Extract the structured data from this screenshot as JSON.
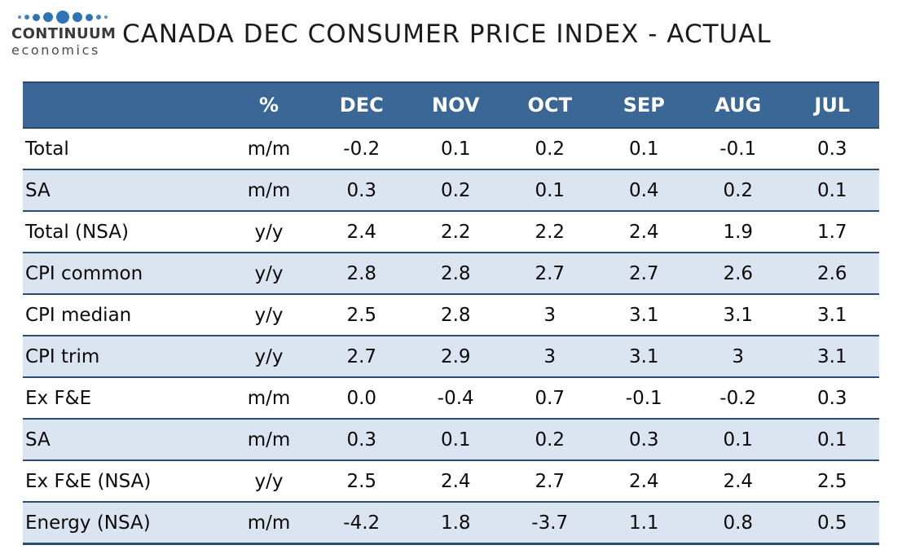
{
  "logo": {
    "name": "CONTINUUM",
    "subname": "economics",
    "dot_color": "#2e74b5"
  },
  "title": "CANADA DEC CONSUMER PRICE INDEX - ACTUAL",
  "colors": {
    "header_bg": "#3a6795",
    "header_text": "#ffffff",
    "row_alt_bg": "#dbe5f1",
    "row_bg": "#ffffff",
    "border": "#2c4c70",
    "body_text": "#0a0a0a"
  },
  "table": {
    "columns": [
      "",
      "%",
      "DEC",
      "NOV",
      "OCT",
      "SEP",
      "AUG",
      "JUL"
    ],
    "rows": [
      {
        "label": "Total",
        "unit": "m/m",
        "values": [
          "-0.2",
          "0.1",
          "0.2",
          "0.1",
          "-0.1",
          "0.3"
        ]
      },
      {
        "label": "SA",
        "unit": "m/m",
        "values": [
          "0.3",
          "0.2",
          "0.1",
          "0.4",
          "0.2",
          "0.1"
        ]
      },
      {
        "label": "Total (NSA)",
        "unit": "y/y",
        "values": [
          "2.4",
          "2.2",
          "2.2",
          "2.4",
          "1.9",
          "1.7"
        ]
      },
      {
        "label": "CPI common",
        "unit": "y/y",
        "values": [
          "2.8",
          "2.8",
          "2.7",
          "2.7",
          "2.6",
          "2.6"
        ]
      },
      {
        "label": "CPI median",
        "unit": "y/y",
        "values": [
          "2.5",
          "2.8",
          "3",
          "3.1",
          "3.1",
          "3.1"
        ]
      },
      {
        "label": "CPI trim",
        "unit": "y/y",
        "values": [
          "2.7",
          "2.9",
          "3",
          "3.1",
          "3",
          "3.1"
        ]
      },
      {
        "label": "Ex F&E",
        "unit": "m/m",
        "values": [
          "0.0",
          "-0.4",
          "0.7",
          "-0.1",
          "-0.2",
          "0.3"
        ]
      },
      {
        "label": "SA",
        "unit": "m/m",
        "values": [
          "0.3",
          "0.1",
          "0.2",
          "0.3",
          "0.1",
          "0.1"
        ]
      },
      {
        "label": "Ex F&E (NSA)",
        "unit": "y/y",
        "values": [
          "2.5",
          "2.4",
          "2.7",
          "2.4",
          "2.4",
          "2.5"
        ]
      },
      {
        "label": "Energy (NSA)",
        "unit": "m/m",
        "values": [
          "-4.2",
          "1.8",
          "-3.7",
          "1.1",
          "0.8",
          "0.5"
        ]
      }
    ]
  },
  "chart_data": {
    "type": "table",
    "title": "CANADA DEC CONSUMER PRICE INDEX - ACTUAL",
    "columns": [
      "",
      "%",
      "DEC",
      "NOV",
      "OCT",
      "SEP",
      "AUG",
      "JUL"
    ],
    "rows": [
      [
        "Total",
        "m/m",
        -0.2,
        0.1,
        0.2,
        0.1,
        -0.1,
        0.3
      ],
      [
        "SA",
        "m/m",
        0.3,
        0.2,
        0.1,
        0.4,
        0.2,
        0.1
      ],
      [
        "Total (NSA)",
        "y/y",
        2.4,
        2.2,
        2.2,
        2.4,
        1.9,
        1.7
      ],
      [
        "CPI common",
        "y/y",
        2.8,
        2.8,
        2.7,
        2.7,
        2.6,
        2.6
      ],
      [
        "CPI median",
        "y/y",
        2.5,
        2.8,
        3.0,
        3.1,
        3.1,
        3.1
      ],
      [
        "CPI trim",
        "y/y",
        2.7,
        2.9,
        3.0,
        3.1,
        3.0,
        3.1
      ],
      [
        "Ex F&E",
        "m/m",
        0.0,
        -0.4,
        0.7,
        -0.1,
        -0.2,
        0.3
      ],
      [
        "SA",
        "m/m",
        0.3,
        0.1,
        0.2,
        0.3,
        0.1,
        0.1
      ],
      [
        "Ex F&E (NSA)",
        "y/y",
        2.5,
        2.4,
        2.7,
        2.4,
        2.4,
        2.5
      ],
      [
        "Energy (NSA)",
        "m/m",
        -4.2,
        1.8,
        -3.7,
        1.1,
        0.8,
        0.5
      ]
    ]
  }
}
